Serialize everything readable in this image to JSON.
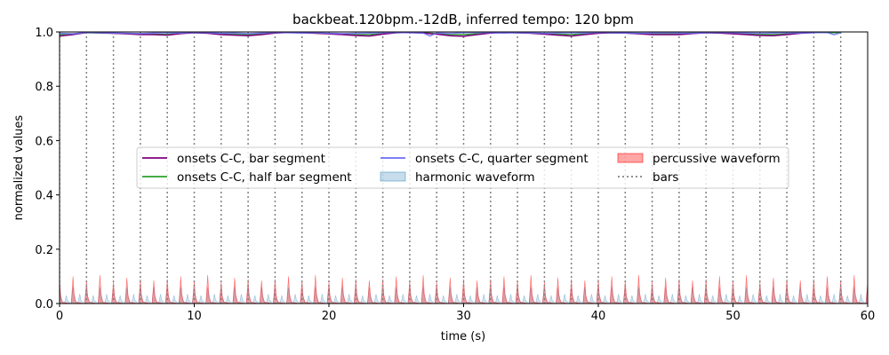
{
  "chart_data": {
    "type": "line",
    "title": "backbeat.120bpm.-12dB, inferred tempo: 120 bpm",
    "xlabel": "time (s)",
    "ylabel": "normalized values",
    "xlim": [
      0,
      60
    ],
    "ylim": [
      0,
      1.0
    ],
    "xticks": [
      0,
      10,
      20,
      30,
      40,
      50,
      60
    ],
    "yticks": [
      0.0,
      0.2,
      0.4,
      0.6,
      0.8,
      1.0
    ],
    "xtick_labels": [
      "0",
      "10",
      "20",
      "30",
      "40",
      "50",
      "60"
    ],
    "ytick_labels": [
      "0.0",
      "0.2",
      "0.4",
      "0.6",
      "0.8",
      "1.0"
    ],
    "grid": false,
    "legend_position": "center",
    "bar_lines": [
      0,
      2,
      4,
      6,
      8,
      10,
      12,
      14,
      16,
      18,
      20,
      22,
      24,
      26,
      28,
      30,
      32,
      34,
      36,
      38,
      40,
      42,
      44,
      46,
      48,
      50,
      52,
      54,
      56,
      58
    ],
    "series": [
      {
        "name": "onsets C-C, bar segment",
        "kind": "line",
        "color": "#800080",
        "x": [
          0,
          1,
          2,
          3,
          4,
          5,
          6,
          7,
          8,
          9,
          10,
          11,
          12,
          13,
          14,
          15,
          16,
          17,
          18,
          19,
          20,
          21,
          22,
          23,
          24,
          25,
          26,
          27,
          28,
          29,
          30,
          31,
          32,
          33,
          34,
          35,
          36,
          37,
          38,
          39,
          40,
          41,
          42,
          43,
          44,
          45,
          46,
          47,
          48,
          49,
          50,
          51,
          52,
          53,
          54,
          55,
          56
        ],
        "y": [
          0.985,
          0.99,
          0.998,
          0.997,
          0.995,
          0.993,
          0.99,
          0.99,
          0.988,
          0.994,
          0.997,
          0.995,
          0.99,
          0.988,
          0.986,
          0.99,
          0.996,
          0.998,
          0.997,
          0.995,
          0.993,
          0.99,
          0.987,
          0.985,
          0.992,
          0.997,
          0.998,
          0.996,
          0.992,
          0.986,
          0.984,
          0.99,
          0.996,
          0.998,
          0.997,
          0.995,
          0.992,
          0.988,
          0.985,
          0.99,
          0.995,
          0.997,
          0.996,
          0.993,
          0.99,
          0.99,
          0.99,
          0.994,
          0.997,
          0.996,
          0.993,
          0.99,
          0.987,
          0.986,
          0.99,
          0.995,
          0.998
        ]
      },
      {
        "name": "onsets C-C, half bar segment",
        "kind": "line",
        "color": "#2ca02c",
        "x": [
          0,
          1,
          2,
          3,
          4,
          5,
          6,
          7,
          8,
          9,
          10,
          11,
          12,
          13,
          14,
          15,
          16,
          17,
          18,
          19,
          20,
          21,
          22,
          23,
          24,
          25,
          26,
          27,
          28,
          29,
          30,
          31,
          32,
          33,
          34,
          35,
          36,
          37,
          38,
          39,
          40,
          41,
          42,
          43,
          44,
          45,
          46,
          47,
          48,
          49,
          50,
          51,
          52,
          53,
          54,
          55,
          56,
          57,
          58
        ],
        "y": [
          0.99,
          0.993,
          0.997,
          0.996,
          0.995,
          0.994,
          0.993,
          0.992,
          0.991,
          0.995,
          0.997,
          0.996,
          0.994,
          0.992,
          0.99,
          0.993,
          0.997,
          0.998,
          0.997,
          0.996,
          0.994,
          0.992,
          0.99,
          0.99,
          0.994,
          0.997,
          0.998,
          0.997,
          0.994,
          0.99,
          0.99,
          0.993,
          0.997,
          0.998,
          0.997,
          0.996,
          0.994,
          0.992,
          0.99,
          0.993,
          0.996,
          0.997,
          0.996,
          0.995,
          0.993,
          0.993,
          0.994,
          0.996,
          0.997,
          0.996,
          0.995,
          0.993,
          0.991,
          0.99,
          0.993,
          0.997,
          0.999,
          0.998,
          0.997
        ]
      },
      {
        "name": "onsets C-C, quarter segment",
        "kind": "line",
        "color": "#6b6bf5",
        "x": [
          0,
          1,
          2,
          3,
          4,
          5,
          6,
          7,
          8,
          9,
          10,
          11,
          12,
          13,
          14,
          15,
          16,
          17,
          18,
          19,
          20,
          21,
          22,
          23,
          24,
          25,
          26,
          27,
          27.5,
          28,
          29,
          30,
          31,
          32,
          33,
          34,
          35,
          36,
          37,
          38,
          39,
          40,
          41,
          42,
          43,
          44,
          45,
          46,
          47,
          48,
          49,
          50,
          51,
          52,
          53,
          54,
          55,
          56,
          57,
          57.5,
          58
        ],
        "y": [
          0.995,
          0.993,
          0.998,
          0.997,
          0.996,
          0.995,
          0.994,
          0.996,
          0.997,
          0.996,
          0.998,
          0.997,
          0.995,
          0.996,
          0.994,
          0.996,
          0.998,
          0.997,
          0.996,
          0.997,
          0.995,
          0.994,
          0.995,
          0.996,
          0.997,
          0.998,
          0.997,
          0.996,
          0.985,
          0.996,
          0.995,
          0.997,
          0.998,
          0.997,
          0.996,
          0.997,
          0.996,
          0.995,
          0.996,
          0.997,
          0.996,
          0.998,
          0.997,
          0.996,
          0.995,
          0.996,
          0.997,
          0.996,
          0.995,
          0.997,
          0.998,
          0.997,
          0.996,
          0.995,
          0.996,
          0.997,
          0.996,
          0.997,
          0.998,
          0.99,
          0.997
        ]
      },
      {
        "name": "harmonic waveform",
        "kind": "area",
        "color": "#1f77b4",
        "alpha": 0.2,
        "peak_interval_s": 0.5,
        "peak_values": [
          0.06,
          0.03,
          0.06,
          0.035
        ]
      },
      {
        "name": "percussive waveform",
        "kind": "area",
        "color": "#ff0000",
        "alpha": 0.3,
        "peak_interval_s": 1.0,
        "peak_values": [
          0.09,
          0.1,
          0.085,
          0.105,
          0.08,
          0.095,
          0.09,
          0.085
        ]
      },
      {
        "name": "bars",
        "kind": "vline",
        "color": "#808080",
        "style": "dotted"
      }
    ]
  }
}
